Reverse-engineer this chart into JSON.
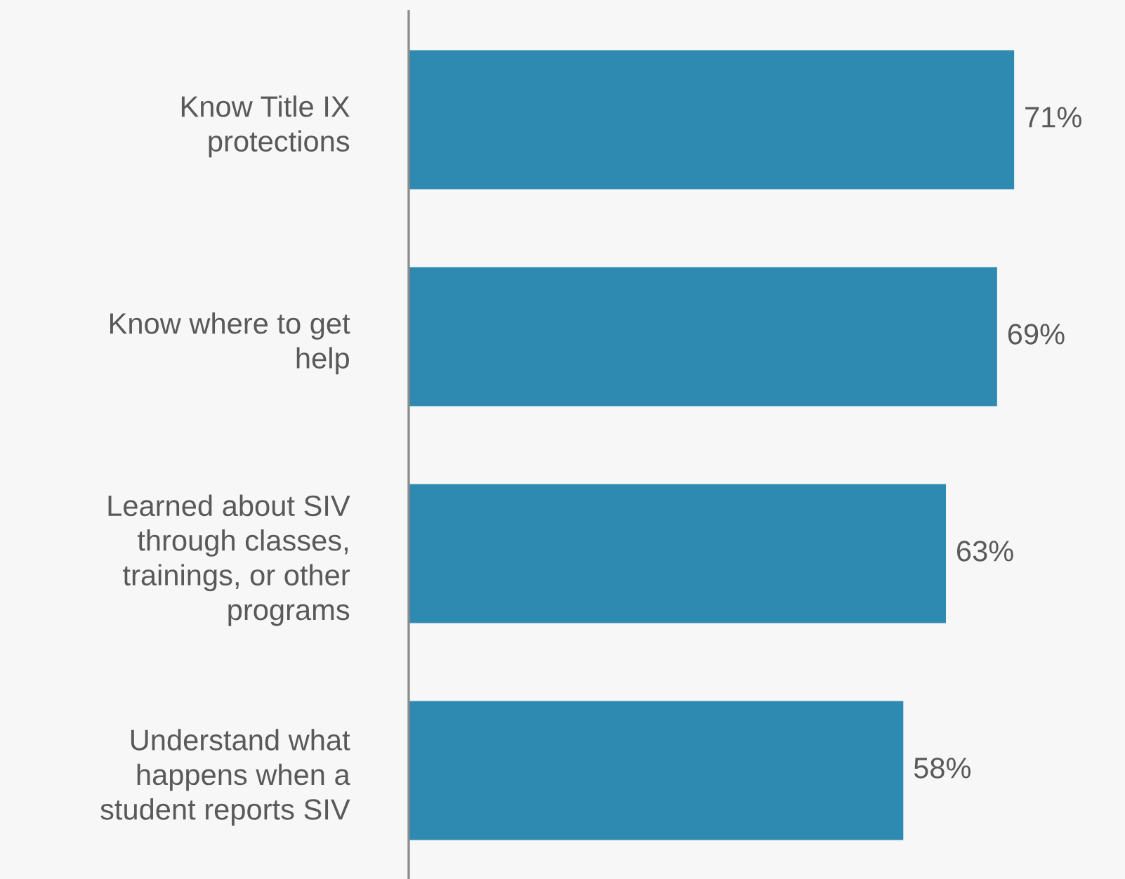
{
  "chart_data": {
    "type": "bar",
    "orientation": "horizontal",
    "categories": [
      "Know Title IX\nprotections",
      "Know where to get\nhelp",
      "Learned about SIV\nthrough classes,\ntrainings, or other\nprograms",
      "Understand what\nhappens when a\nstudent reports SIV"
    ],
    "values": [
      71,
      69,
      63,
      58
    ],
    "value_labels": [
      "71%",
      "69%",
      "63%",
      "58%"
    ],
    "color": "#2e8ab0",
    "xlim": [
      0,
      84
    ],
    "tick_labels": "y",
    "grid": false,
    "legend": false
  }
}
